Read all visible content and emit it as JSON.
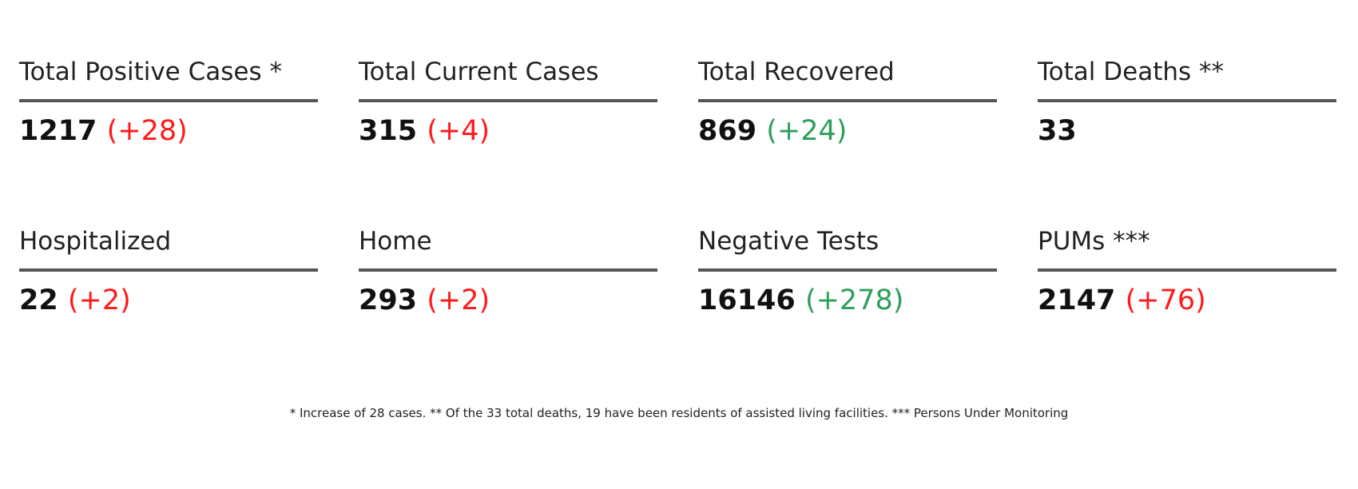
{
  "stats": [
    {
      "label": "Total Positive Cases *",
      "value": "1217",
      "change": "(+28)",
      "change_color": "#ff1a1a"
    },
    {
      "label": "Total Current Cases",
      "value": "315",
      "change": "(+4)",
      "change_color": "#ff1a1a"
    },
    {
      "label": "Total Recovered",
      "value": "869",
      "change": "(+24)",
      "change_color": "#2e9e5b"
    },
    {
      "label": "Total Deaths **",
      "value": "33"
    },
    {
      "label": "Hospitalized",
      "value": "22",
      "change": "(+2)",
      "change_color": "#ff1a1a"
    },
    {
      "label": "Home",
      "value": "293",
      "change": "(+2)",
      "change_color": "#ff1a1a"
    },
    {
      "label": "Negative Tests",
      "value": "16146",
      "change": "(+278)",
      "change_color": "#2e9e5b"
    },
    {
      "label": "PUMs ***",
      "value": "2147",
      "change": "(+76)",
      "change_color": "#ff1a1a"
    }
  ],
  "footnote": "* Increase of 28 cases. ** Of the 33 total deaths, 19 have been residents of assisted living facilities. *** Persons Under Monitoring"
}
